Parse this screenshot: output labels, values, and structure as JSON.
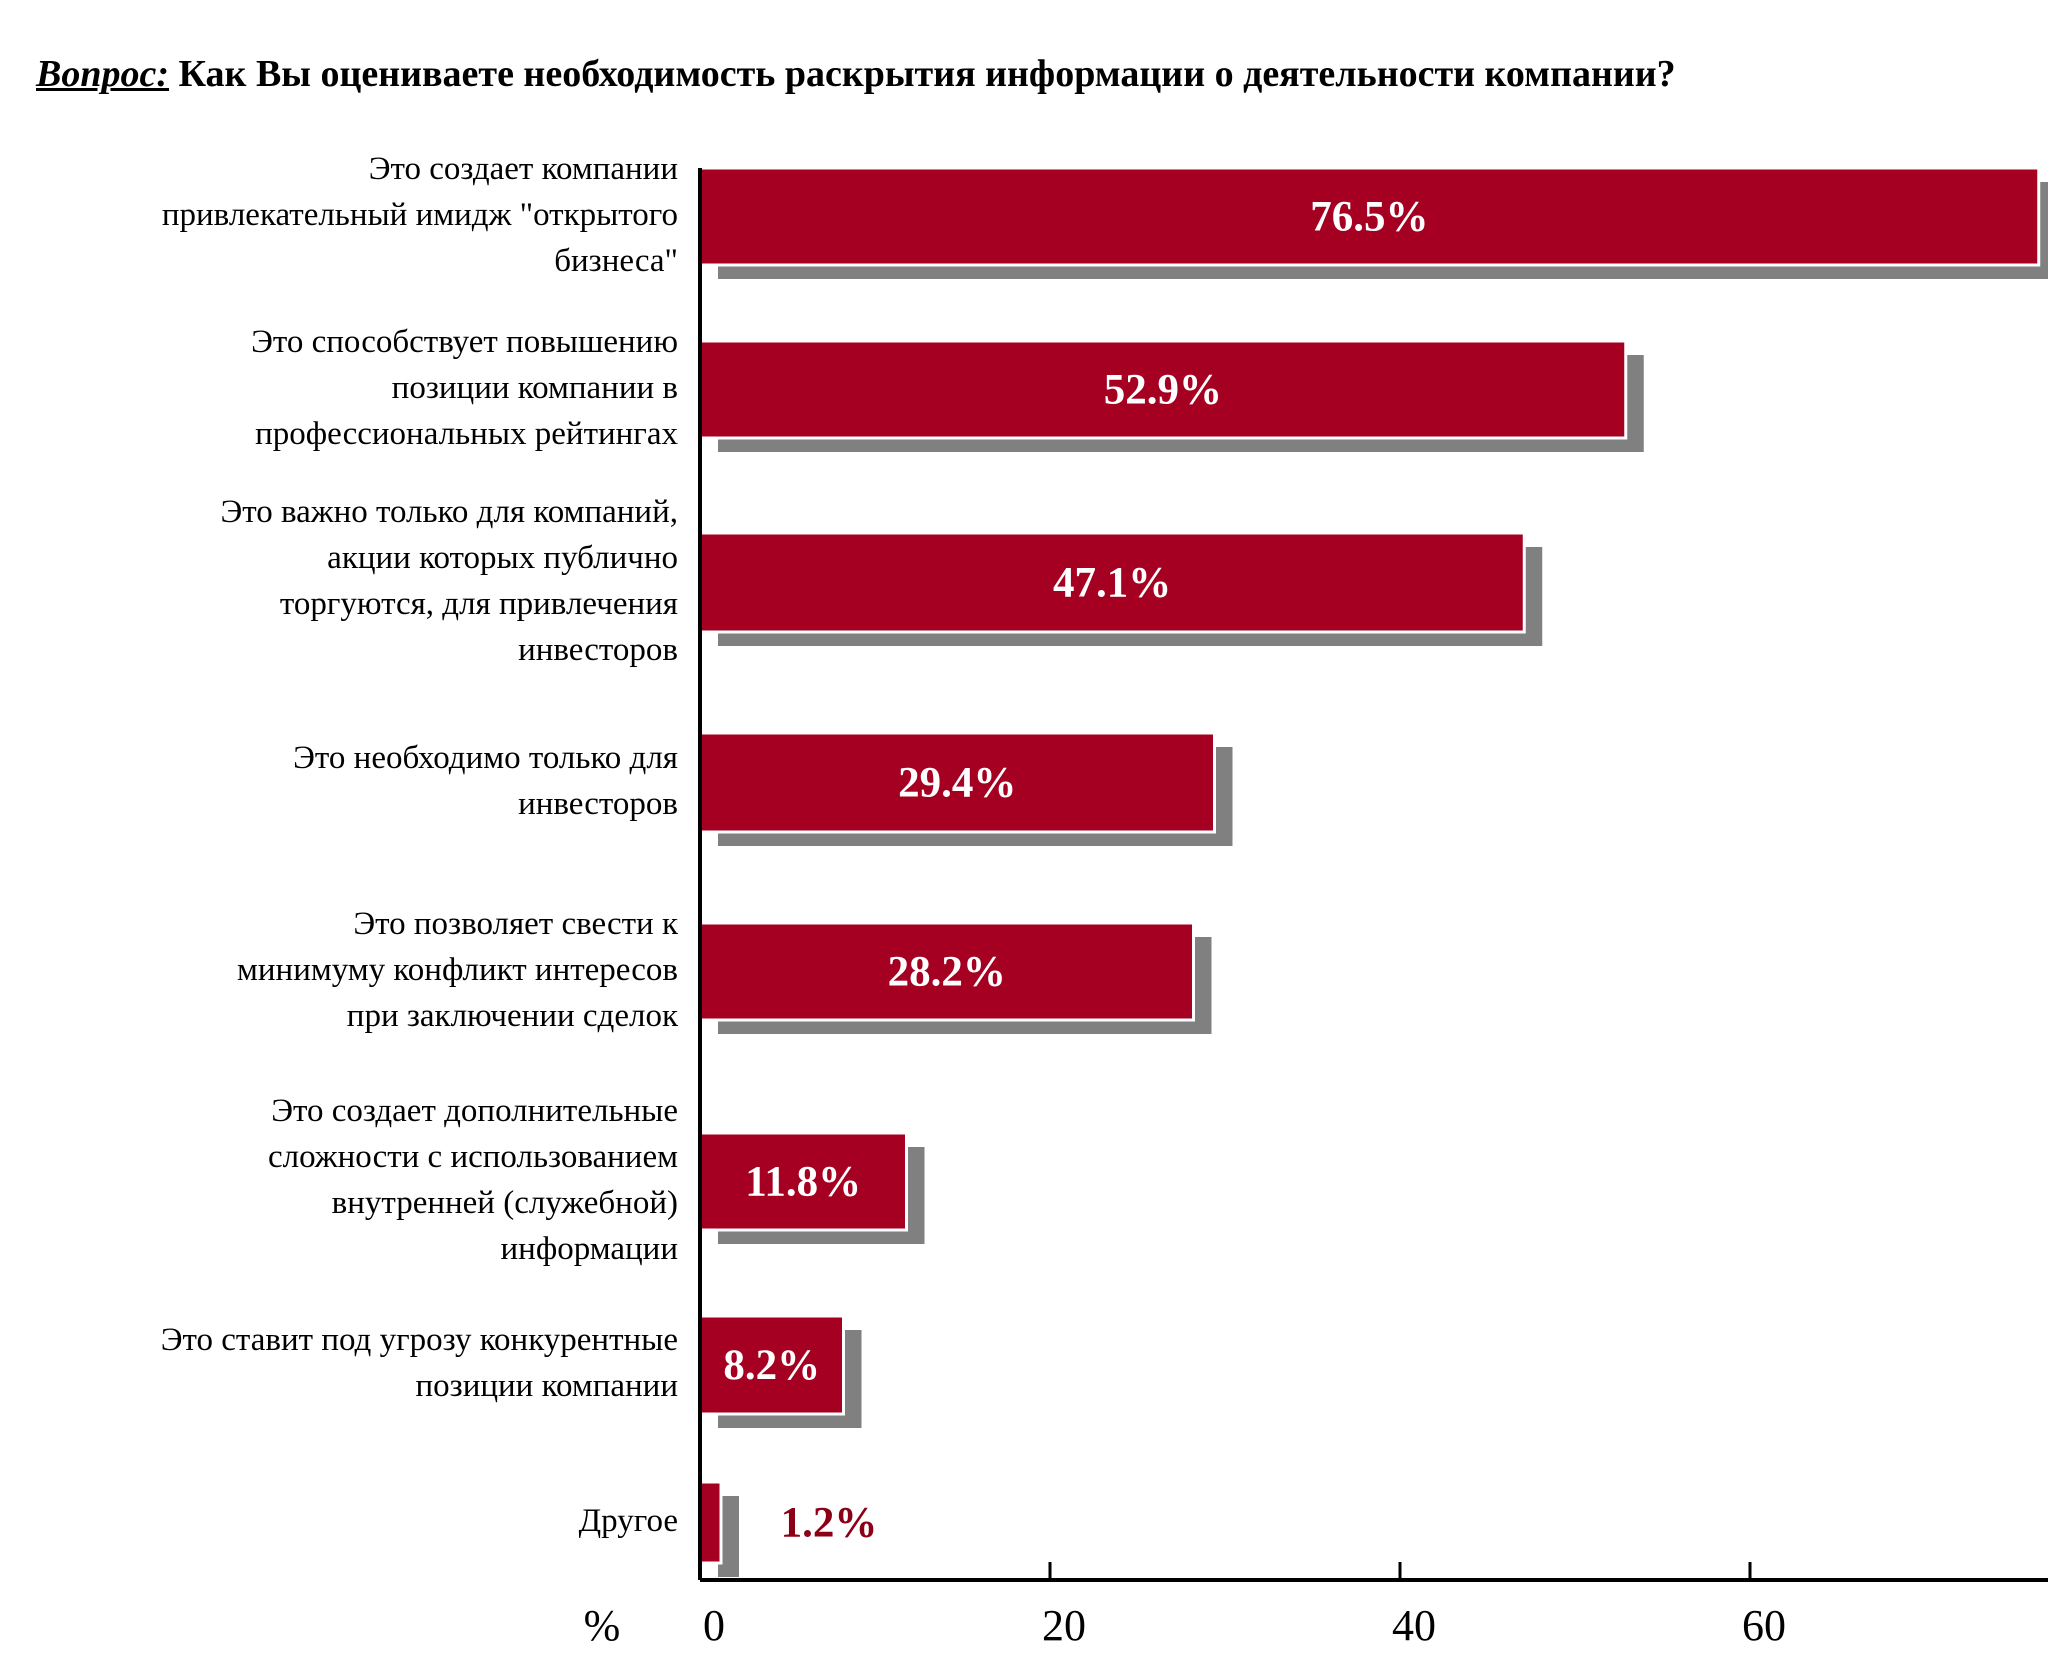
{
  "question": {
    "label": "Вопрос:",
    "text": "Как Вы оцениваете необходимость раскрытия информации о деятельности компании?"
  },
  "chart_data": {
    "type": "bar",
    "orientation": "horizontal",
    "categories": [
      "Это создает компании привлекательный имидж \"открытого бизнеса\"",
      "Это способствует повышению позиции компании в профессиональных рейтингах",
      "Это важно только для компаний, акции которых публично торгуются, для привлечения инвесторов",
      "Это необходимо только для инвесторов",
      "Это позволяет свести к минимуму конфликт интересов при заключении сделок",
      "Это создает дополнительные сложности с использованием внутренней (служебной) информации",
      "Это ставит под угрозу конкурентные позиции компании",
      "Другое"
    ],
    "category_lines": [
      [
        "Это создает компании",
        "привлекательный имидж \"открытого",
        "бизнеса\""
      ],
      [
        "Это способствует повышению",
        "позиции компании в",
        "профессиональных рейтингах"
      ],
      [
        "Это важно только для компаний,",
        "акции которых публично",
        "торгуются, для привлечения",
        "инвесторов"
      ],
      [
        "Это необходимо только для",
        "инвесторов"
      ],
      [
        "Это позволяет свести к",
        "минимуму конфликт интересов",
        "при заключении сделок"
      ],
      [
        "Это создает дополнительные",
        "сложности с использованием",
        "внутренней (служебной)",
        "информации"
      ],
      [
        "Это ставит под угрозу конкурентные",
        "позиции компании"
      ],
      [
        "Другое"
      ]
    ],
    "values": [
      76.5,
      52.9,
      47.1,
      29.4,
      28.2,
      11.8,
      8.2,
      1.2
    ],
    "data_labels": [
      "76.5%",
      "52.9%",
      "47.1%",
      "29.4%",
      "28.2%",
      "11.8%",
      "8.2%",
      "1.2%"
    ],
    "x_unit_label": "%",
    "x_ticks": [
      0,
      20,
      40,
      60
    ],
    "xlim": [
      0,
      76.5
    ],
    "grid": false,
    "colors": {
      "bar": "#a50021",
      "shadow": "#808080",
      "label_inside": "#ffffff",
      "label_outside": "#8b0016",
      "axis": "#000000"
    }
  }
}
